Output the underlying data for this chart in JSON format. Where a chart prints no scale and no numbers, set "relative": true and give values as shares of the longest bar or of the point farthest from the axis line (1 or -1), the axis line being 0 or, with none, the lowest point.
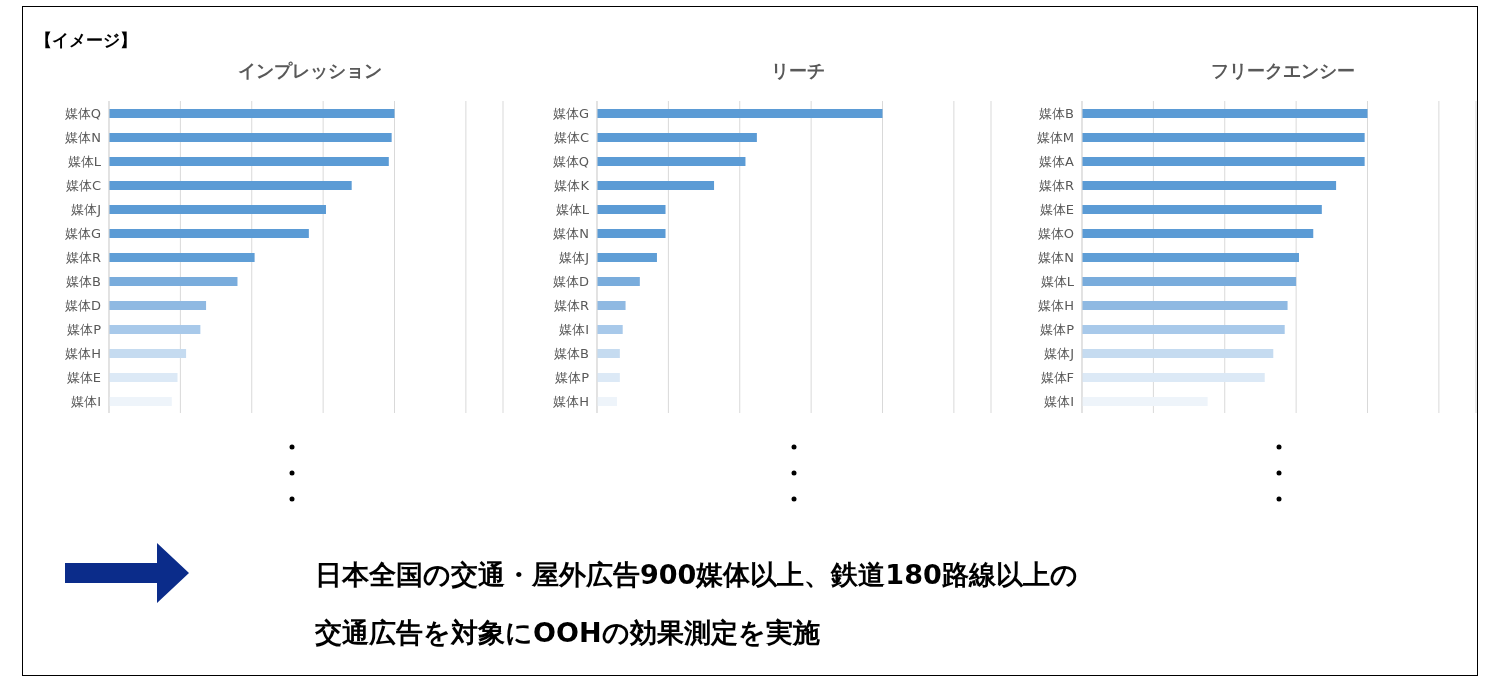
{
  "chart_data": [
    {
      "type": "bar",
      "orientation": "horizontal",
      "relative": true,
      "grid": "x",
      "title": "インプレッション",
      "annotations": [
        "【イメージ】"
      ],
      "categories": [
        "媒体Q",
        "媒体N",
        "媒体L",
        "媒体C",
        "媒体J",
        "媒体G",
        "媒体R",
        "媒体B",
        "媒体D",
        "媒体P",
        "媒体H",
        "媒体E",
        "媒体I"
      ],
      "values": [
        1,
        0.99,
        0.98,
        0.85,
        0.76,
        0.7,
        0.51,
        0.45,
        0.34,
        0.32,
        0.27,
        0.24,
        0.22
      ],
      "colors": [
        "#5b9bd5",
        "#5b9bd5",
        "#5b9bd5",
        "#5b9bd5",
        "#5b9bd5",
        "#5b9bd5",
        "#5f9ed6",
        "#79acdc",
        "#8fb9e2",
        "#a8c9ea",
        "#c5dbf0",
        "#dce9f6",
        "#eef4fa"
      ]
    },
    {
      "type": "bar",
      "orientation": "horizontal",
      "relative": true,
      "grid": "x",
      "title": "リーチ",
      "categories": [
        "媒体G",
        "媒体C",
        "媒体Q",
        "媒体K",
        "媒体L",
        "媒体N",
        "媒体J",
        "媒体D",
        "媒体R",
        "媒体I",
        "媒体B",
        "媒体P",
        "媒体H"
      ],
      "values": [
        1,
        0.56,
        0.52,
        0.41,
        0.24,
        0.24,
        0.21,
        0.15,
        0.1,
        0.09,
        0.08,
        0.08,
        0.07
      ],
      "colors": [
        "#5b9bd5",
        "#5b9bd5",
        "#5b9bd5",
        "#5b9bd5",
        "#5b9bd5",
        "#5b9bd5",
        "#5f9ed6",
        "#79acdc",
        "#8fb9e2",
        "#a8c9ea",
        "#c5dbf0",
        "#dce9f6",
        "#eef4fa"
      ]
    },
    {
      "type": "bar",
      "orientation": "horizontal",
      "relative": true,
      "grid": "x",
      "title": "フリークエンシー",
      "categories": [
        "媒体B",
        "媒体M",
        "媒体A",
        "媒体R",
        "媒体E",
        "媒体O",
        "媒体N",
        "媒体L",
        "媒体H",
        "媒体P",
        "媒体J",
        "媒体F",
        "媒体I"
      ],
      "values": [
        1,
        0.99,
        0.99,
        0.89,
        0.84,
        0.81,
        0.76,
        0.75,
        0.72,
        0.71,
        0.67,
        0.64,
        0.44
      ],
      "colors": [
        "#5b9bd5",
        "#5b9bd5",
        "#5b9bd5",
        "#5b9bd5",
        "#5b9bd5",
        "#5b9bd5",
        "#5f9ed6",
        "#79acdc",
        "#8fb9e2",
        "#a8c9ea",
        "#c5dbf0",
        "#dce9f6",
        "#eef4fa"
      ]
    },
    {
      "type": "other",
      "annotations": [
        "日本全国の交通・屋外広告900媒体以上、鉄道180路線以上の",
        "交通広告を対象にOOHの効果測定を実施"
      ]
    }
  ]
}
